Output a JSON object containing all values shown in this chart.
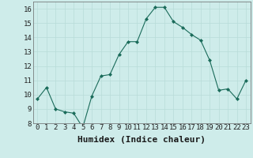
{
  "x": [
    0,
    1,
    2,
    3,
    4,
    5,
    6,
    7,
    8,
    9,
    10,
    11,
    12,
    13,
    14,
    15,
    16,
    17,
    18,
    19,
    20,
    21,
    22,
    23
  ],
  "y": [
    9.7,
    10.5,
    9.0,
    8.8,
    8.7,
    7.7,
    9.9,
    11.3,
    11.4,
    12.8,
    13.7,
    13.7,
    15.3,
    16.1,
    16.1,
    15.1,
    14.7,
    14.2,
    13.8,
    12.4,
    10.3,
    10.4,
    9.7,
    11.0
  ],
  "xlabel": "Humidex (Indice chaleur)",
  "ylim": [
    8,
    16.5
  ],
  "xlim": [
    -0.5,
    23.5
  ],
  "yticks": [
    8,
    9,
    10,
    11,
    12,
    13,
    14,
    15,
    16
  ],
  "xticks": [
    0,
    1,
    2,
    3,
    4,
    5,
    6,
    7,
    8,
    9,
    10,
    11,
    12,
    13,
    14,
    15,
    16,
    17,
    18,
    19,
    20,
    21,
    22,
    23
  ],
  "line_color": "#1a6b5a",
  "marker_color": "#1a6b5a",
  "bg_color": "#ceecea",
  "grid_color": "#b8dcd8",
  "xlabel_fontsize": 8,
  "tick_fontsize": 6.5
}
